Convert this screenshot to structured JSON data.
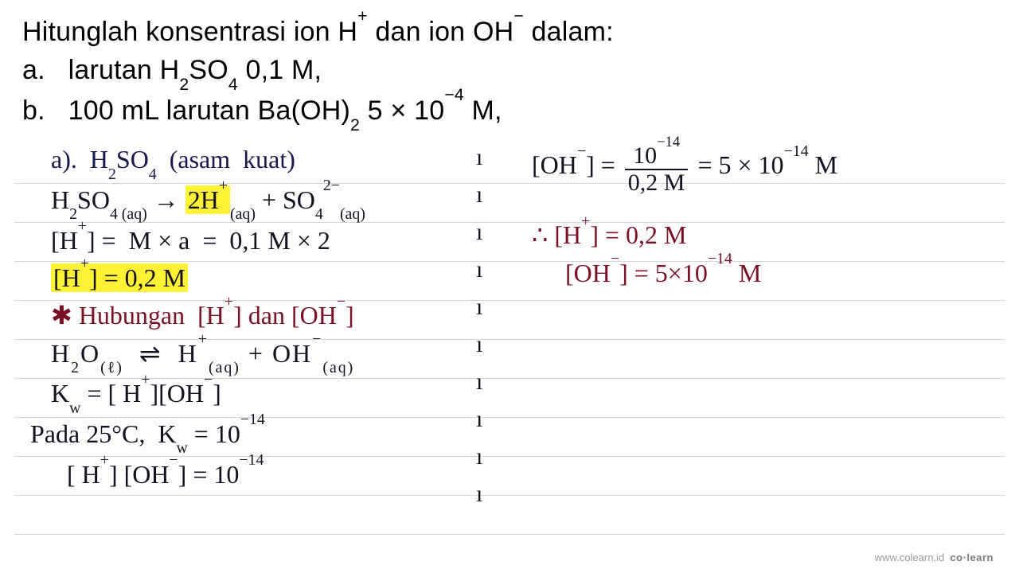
{
  "printed": {
    "title_html": "Hitunglah konsentrasi ion H<sup>+</sup> dan ion OH<sup>−</sup> dalam:",
    "a_html": "larutan H<sub>2</sub>SO<sub>4</sub> 0,1 M,",
    "b_html": "100 mL larutan Ba(OH)<sub>2</sub> 5 × 10<sup>−4</sup> M,",
    "label_a": "a.",
    "label_b": "b."
  },
  "hand": {
    "left": {
      "l1_html": "a). &nbsp;H<sub>2</sub>SO<sub>4</sub> &nbsp;(asam &nbsp;kuat)",
      "l2_pre": "H<sub>2</sub>SO<sub>4 (aq)</sub> →&nbsp;",
      "l2_hl": "2H<sup>+</sup>",
      "l2_post": "<sub>(aq)</sub> + SO<sub>4</sub><sup>2−</sup><sub>(aq)</sub>",
      "l3_html": "[H<sup>+</sup>] = &nbsp;M × a &nbsp;= &nbsp;0,1 M × 2",
      "l4_hl": "[H<sup>+</sup>] = 0,2 M",
      "l5_html": "✱ Hubungan &nbsp;[H<sup>+</sup>] dan [OH<sup>−</sup>]",
      "l6_html": "H<sub>2</sub>O<sub>(ℓ)</sub> &nbsp;⇌ &nbsp;H<sup>+</sup><sub>(aq)</sub> + OH<sup>−</sup><sub>(aq)</sub>",
      "l7_html": "K<sub>w</sub> = [ H<sup>+</sup>][OH<sup>−</sup>]",
      "l8_html": "Pada 25°C, &nbsp;K<sub>w</sub> = 10<sup>−14</sup>",
      "l9_html": "[ H<sup>+</sup>] [OH<sup>−</sup>] = 10<sup>−14</sup>"
    },
    "right": {
      "r1_pre": "[OH<sup>−</sup>] = ",
      "r1_num": "10<sup>−14</sup>",
      "r1_den": "0,2 M",
      "r1_post": "= 5 × 10<sup>−14</sup> M",
      "r2_html": "∴ [H<sup>+</sup>] = 0,2 M",
      "r3_html": "[OH<sup>−</sup>] = 5×10<sup>−14</sup> M"
    },
    "colors": {
      "ink": "#141022",
      "darkred": "#7a1026",
      "highlight": "#fff133",
      "ruled": "#d6d6d6"
    }
  },
  "watermark": {
    "site": "www.colearn.id",
    "brand": "co·learn"
  }
}
